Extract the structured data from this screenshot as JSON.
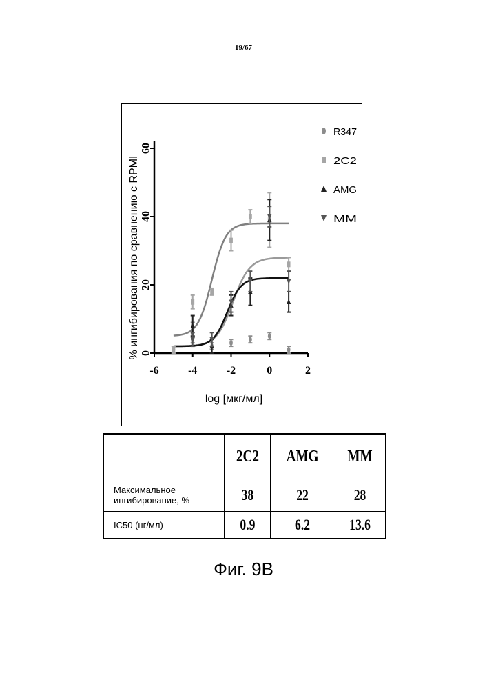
{
  "page_number": "19/67",
  "figure_caption": "Фиг. 9B",
  "chart_data": {
    "type": "scatter",
    "xlabel": "log [мкг/мл]",
    "ylabel": "% ингибирования по сравнению с RPMI",
    "xlim": [
      -6,
      2
    ],
    "ylim": [
      0,
      60
    ],
    "x_ticks": [
      "-6",
      "-4",
      "-2",
      "0",
      "2"
    ],
    "y_ticks": [
      "0",
      "20",
      "40",
      "60"
    ],
    "legend_position": "top-right",
    "series": [
      {
        "name": "R347",
        "marker": "circle",
        "color": "#8c8c8c",
        "points": [
          [
            -5,
            1
          ],
          [
            -4,
            6
          ],
          [
            -3,
            2
          ],
          [
            -2,
            3
          ],
          [
            -1,
            4
          ],
          [
            0,
            5
          ],
          [
            1,
            1
          ]
        ],
        "errors": [
          1,
          3,
          1,
          1,
          1,
          1,
          1
        ]
      },
      {
        "name": "2C2",
        "marker": "square",
        "color": "#a6a6a6",
        "points": [
          [
            -5,
            1
          ],
          [
            -4,
            15
          ],
          [
            -3,
            18
          ],
          [
            -2,
            33
          ],
          [
            -1,
            40
          ],
          [
            0,
            39
          ],
          [
            1,
            26
          ]
        ],
        "errors": [
          1,
          2,
          1,
          3,
          2,
          8,
          2
        ]
      },
      {
        "name": "AMG",
        "marker": "triangle-up",
        "color": "#222222",
        "points": [
          [
            -4,
            8
          ],
          [
            -3,
            2
          ],
          [
            -2,
            14
          ],
          [
            -1,
            18
          ],
          [
            0,
            39
          ],
          [
            1,
            15
          ]
        ],
        "errors": [
          3,
          2,
          3,
          4,
          6,
          3
        ]
      },
      {
        "name": "MM",
        "marker": "triangle-down",
        "color": "#555555",
        "points": [
          [
            -4,
            4
          ],
          [
            -3,
            4
          ],
          [
            -2,
            15
          ],
          [
            -1,
            21
          ],
          [
            0,
            40
          ],
          [
            1,
            21
          ]
        ],
        "errors": [
          2,
          2,
          3,
          3,
          3,
          3
        ]
      }
    ],
    "fit_curves": [
      {
        "series": "2C2",
        "bottom": 5,
        "top": 38,
        "log_ec50": -3.0,
        "hill": 1.2,
        "color": "#808080"
      },
      {
        "series": "MM",
        "bottom": 2,
        "top": 28,
        "log_ec50": -1.9,
        "hill": 1.0,
        "color": "#9a9a9a"
      },
      {
        "series": "AMG",
        "bottom": 2,
        "top": 22,
        "log_ec50": -2.2,
        "hill": 1.2,
        "color": "#111111"
      }
    ]
  },
  "table": {
    "headers": [
      "",
      "2C2",
      "AMG",
      "MM"
    ],
    "rows": [
      {
        "label": "Максимальное ингибирование, %",
        "values": [
          "38",
          "22",
          "28"
        ]
      },
      {
        "label": "IC50 (нг/мл)",
        "values": [
          "0.9",
          "6.2",
          "13.6"
        ]
      }
    ]
  }
}
